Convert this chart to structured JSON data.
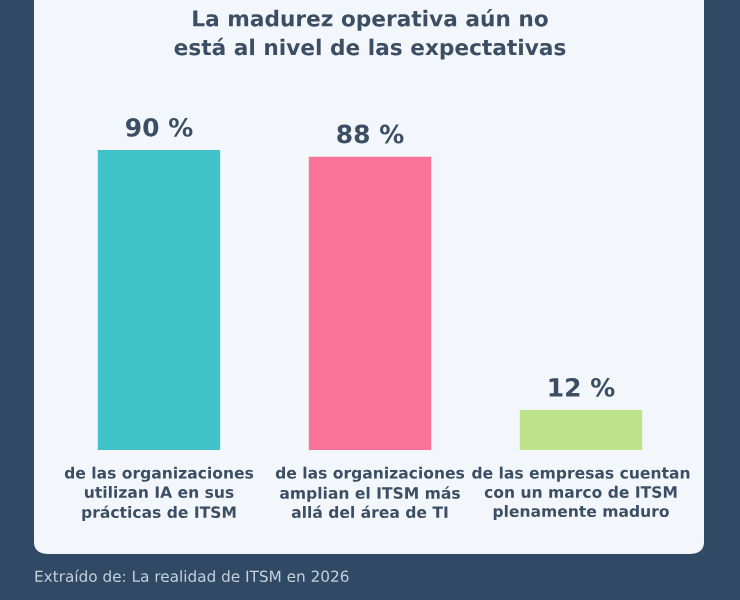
{
  "chart_data": {
    "type": "bar",
    "title": "La madurez operativa aún no\nestá al nivel de las expectativas",
    "categories": [
      "de las organizaciones\nutilizan IA en sus\nprácticas de ITSM",
      "de las organizaciones\namplian el ITSM más\nallá del área de TI",
      "de las empresas cuentan\ncon un marco de ITSM\nplenamente maduro"
    ],
    "values": [
      90,
      88,
      12
    ],
    "value_labels": [
      "90 %",
      "88 %",
      "12 %"
    ],
    "colors": [
      "#3fc3c9",
      "#f77398",
      "#bce28c"
    ],
    "annotations": [
      "Extraído de: La realidad de ITSM en 2026"
    ]
  }
}
